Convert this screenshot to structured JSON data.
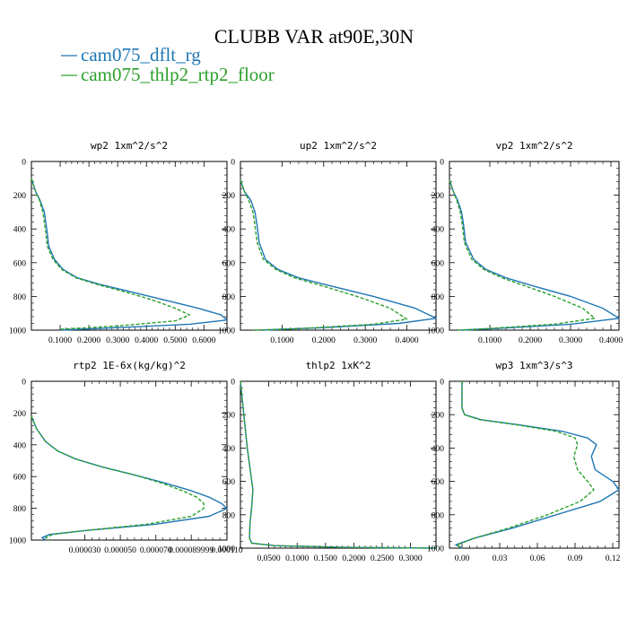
{
  "title": "CLUBB VAR at90E,30N",
  "legend": [
    {
      "label": "cam075_dflt_rg",
      "color": "#1f77b4"
    },
    {
      "label": "cam075_thlp2_rtp2_floor",
      "color": "#2ca02c"
    }
  ],
  "chart_data": [
    {
      "type": "line",
      "title": "wp2  1xm^2/s^2",
      "xlim": [
        0.0,
        0.68
      ],
      "ylim": [
        1000,
        0
      ],
      "y_inverted": true,
      "xticks": [
        {
          "v": 0.1,
          "label": "0.1000"
        },
        {
          "v": 0.2,
          "label": "0.2000"
        },
        {
          "v": 0.3,
          "label": "0.3000"
        },
        {
          "v": 0.4,
          "label": "0.4000"
        },
        {
          "v": 0.5,
          "label": "0.5000"
        },
        {
          "v": 0.6,
          "label": "0.6000"
        }
      ],
      "yticks": [
        0,
        200,
        400,
        600,
        800,
        1000
      ],
      "series": [
        {
          "name": "cam075_dflt_rg",
          "color": "#1f77b4",
          "dash": "",
          "x": [
            0.0,
            0.015,
            0.03,
            0.045,
            0.05,
            0.055,
            0.06,
            0.08,
            0.11,
            0.16,
            0.24,
            0.34,
            0.46,
            0.58,
            0.66,
            0.68,
            0.55,
            0.3,
            0.1
          ],
          "y": [
            100,
            180,
            230,
            300,
            360,
            420,
            500,
            580,
            640,
            690,
            730,
            770,
            820,
            870,
            910,
            940,
            965,
            985,
            1000
          ]
        },
        {
          "name": "cam075_thlp2_rtp2_floor",
          "color": "#2ca02c",
          "dash": "4,2",
          "x": [
            0.0,
            0.015,
            0.028,
            0.04,
            0.045,
            0.05,
            0.055,
            0.075,
            0.105,
            0.155,
            0.23,
            0.32,
            0.42,
            0.5,
            0.55,
            0.5,
            0.3,
            0.1
          ],
          "y": [
            100,
            180,
            230,
            300,
            360,
            420,
            500,
            580,
            640,
            690,
            730,
            770,
            820,
            870,
            910,
            945,
            975,
            995
          ]
        }
      ]
    },
    {
      "type": "line",
      "title": "up2  1xm^2/s^2",
      "xlim": [
        0.0,
        0.47
      ],
      "ylim": [
        1000,
        0
      ],
      "y_inverted": true,
      "xticks": [
        {
          "v": 0.1,
          "label": "0.1000"
        },
        {
          "v": 0.2,
          "label": "0.2000"
        },
        {
          "v": 0.3,
          "label": "0.3000"
        },
        {
          "v": 0.4,
          "label": "0.4000"
        }
      ],
      "yticks": [
        0,
        200,
        400,
        600,
        800,
        1000
      ],
      "series": [
        {
          "name": "cam075_dflt_rg",
          "color": "#1f77b4",
          "dash": "",
          "x": [
            0.0,
            0.01,
            0.025,
            0.035,
            0.04,
            0.045,
            0.06,
            0.09,
            0.14,
            0.22,
            0.32,
            0.42,
            0.47,
            0.38,
            0.2,
            0.05
          ],
          "y": [
            110,
            180,
            230,
            300,
            380,
            480,
            580,
            640,
            690,
            740,
            800,
            870,
            930,
            960,
            985,
            1000
          ]
        },
        {
          "name": "cam075_thlp2_rtp2_floor",
          "color": "#2ca02c",
          "dash": "4,2",
          "x": [
            0.0,
            0.01,
            0.02,
            0.03,
            0.035,
            0.04,
            0.055,
            0.085,
            0.13,
            0.2,
            0.28,
            0.36,
            0.4,
            0.32,
            0.15,
            0.03
          ],
          "y": [
            110,
            180,
            230,
            300,
            380,
            480,
            580,
            640,
            690,
            740,
            800,
            870,
            935,
            965,
            990,
            1000
          ]
        }
      ]
    },
    {
      "type": "line",
      "title": "vp2  1xm^2/s^2",
      "xlim": [
        0.0,
        0.42
      ],
      "ylim": [
        1000,
        0
      ],
      "y_inverted": true,
      "xticks": [
        {
          "v": 0.1,
          "label": "0.1000"
        },
        {
          "v": 0.2,
          "label": "0.2000"
        },
        {
          "v": 0.3,
          "label": "0.3000"
        },
        {
          "v": 0.4,
          "label": "0.4000"
        }
      ],
      "yticks": [
        0,
        200,
        400,
        600,
        800,
        1000
      ],
      "series": [
        {
          "name": "cam075_dflt_rg",
          "color": "#1f77b4",
          "dash": "",
          "x": [
            0.0,
            0.01,
            0.02,
            0.03,
            0.035,
            0.04,
            0.06,
            0.09,
            0.14,
            0.21,
            0.3,
            0.38,
            0.42,
            0.3,
            0.12,
            0.03
          ],
          "y": [
            110,
            180,
            230,
            300,
            380,
            480,
            580,
            640,
            690,
            740,
            800,
            870,
            930,
            965,
            990,
            1000
          ]
        },
        {
          "name": "cam075_thlp2_rtp2_floor",
          "color": "#2ca02c",
          "dash": "4,2",
          "x": [
            0.0,
            0.01,
            0.018,
            0.027,
            0.032,
            0.037,
            0.055,
            0.085,
            0.13,
            0.19,
            0.26,
            0.33,
            0.36,
            0.26,
            0.1,
            0.02
          ],
          "y": [
            110,
            180,
            230,
            300,
            380,
            480,
            580,
            640,
            690,
            740,
            800,
            870,
            930,
            965,
            990,
            1000
          ]
        }
      ]
    },
    {
      "type": "line",
      "title": "rtp2  1E-6x(kg/kg)^2",
      "xlim": [
        0.0,
        0.00011
      ],
      "ylim": [
        1000,
        0
      ],
      "y_inverted": true,
      "xticks": [
        {
          "v": 3e-05,
          "label": "0.000030"
        },
        {
          "v": 5e-05,
          "label": "0.000050"
        },
        {
          "v": 7e-05,
          "label": "0.000070"
        },
        {
          "v": 8.99e-05,
          "label": "0.000089999"
        },
        {
          "v": 0.00011,
          "label": "0.000110"
        }
      ],
      "yticks": [
        0,
        200,
        400,
        600,
        800,
        1000
      ],
      "series": [
        {
          "name": "cam075_dflt_rg",
          "color": "#1f77b4",
          "dash": "",
          "x": [
            0.0,
            3e-06,
            8e-06,
            1.5e-05,
            2.5e-05,
            4e-05,
            5.8e-05,
            7.5e-05,
            9e-05,
            0.0001,
            0.000107,
            0.00011,
            0.0001,
            7e-05,
            3e-05,
            1e-05,
            6e-06,
            8e-06
          ],
          "y": [
            220,
            300,
            380,
            440,
            490,
            540,
            590,
            640,
            690,
            730,
            770,
            800,
            850,
            900,
            940,
            965,
            985,
            1000
          ]
        },
        {
          "name": "cam075_thlp2_rtp2_floor",
          "color": "#2ca02c",
          "dash": "4,2",
          "x": [
            0.0,
            3e-06,
            8e-06,
            1.5e-05,
            2.5e-05,
            4e-05,
            5.8e-05,
            7.3e-05,
            8.5e-05,
            9.3e-05,
            9.7e-05,
            9.7e-05,
            9e-05,
            6.5e-05,
            3e-05,
            1.2e-05,
            8e-06,
            1e-05
          ],
          "y": [
            220,
            300,
            380,
            440,
            490,
            540,
            590,
            640,
            690,
            730,
            770,
            800,
            850,
            900,
            940,
            965,
            985,
            1000
          ]
        }
      ]
    },
    {
      "type": "line",
      "title": "thlp2  1xK^2",
      "xlim": [
        0.0,
        0.345
      ],
      "ylim": [
        1000,
        0
      ],
      "y_inverted": true,
      "xticks": [
        {
          "v": 0.05,
          "label": "0.0500"
        },
        {
          "v": 0.1,
          "label": "0.1000"
        },
        {
          "v": 0.15,
          "label": "0.1500"
        },
        {
          "v": 0.2,
          "label": "0.2000"
        },
        {
          "v": 0.25,
          "label": "0.2500"
        },
        {
          "v": 0.3,
          "label": "0.3000"
        }
      ],
      "yticks": [
        0,
        200,
        400,
        600,
        800,
        1000
      ],
      "series": [
        {
          "name": "cam075_dflt_rg",
          "color": "#1f77b4",
          "dash": "",
          "x": [
            0.0,
            0.006,
            0.012,
            0.018,
            0.022,
            0.02,
            0.017,
            0.016,
            0.02,
            0.06,
            0.18,
            0.345
          ],
          "y": [
            0,
            200,
            400,
            550,
            650,
            750,
            850,
            940,
            970,
            985,
            995,
            1000
          ]
        },
        {
          "name": "cam075_thlp2_rtp2_floor",
          "color": "#2ca02c",
          "dash": "4,2",
          "x": [
            0.0,
            0.006,
            0.012,
            0.018,
            0.022,
            0.02,
            0.017,
            0.016,
            0.02,
            0.06,
            0.18,
            0.345
          ],
          "y": [
            0,
            200,
            400,
            550,
            650,
            750,
            850,
            940,
            970,
            985,
            995,
            1000
          ]
        }
      ]
    },
    {
      "type": "line",
      "title": "wp3  1xm^3/s^3",
      "xlim": [
        -0.01,
        0.125
      ],
      "ylim": [
        1000,
        0
      ],
      "y_inverted": true,
      "xticks": [
        {
          "v": 0.0,
          "label": "0.00"
        },
        {
          "v": 0.03,
          "label": "0.03"
        },
        {
          "v": 0.06,
          "label": "0.06"
        },
        {
          "v": 0.09,
          "label": "0.09"
        },
        {
          "v": 0.12,
          "label": "0.12"
        }
      ],
      "yticks": [
        0,
        200,
        400,
        600,
        800,
        1000
      ],
      "series": [
        {
          "name": "cam075_dflt_rg",
          "color": "#1f77b4",
          "dash": "",
          "x": [
            0.0,
            0.0,
            0.002,
            0.015,
            0.045,
            0.08,
            0.1,
            0.107,
            0.103,
            0.106,
            0.12,
            0.125,
            0.11,
            0.075,
            0.04,
            0.01,
            -0.005,
            0.0
          ],
          "y": [
            0,
            160,
            200,
            230,
            260,
            300,
            340,
            380,
            450,
            530,
            600,
            650,
            720,
            800,
            880,
            940,
            980,
            1000
          ]
        },
        {
          "name": "cam075_thlp2_rtp2_floor",
          "color": "#2ca02c",
          "dash": "4,2",
          "x": [
            0.0,
            0.0,
            0.002,
            0.014,
            0.043,
            0.075,
            0.09,
            0.092,
            0.089,
            0.092,
            0.1,
            0.105,
            0.094,
            0.068,
            0.037,
            0.01,
            -0.004,
            0.0
          ],
          "y": [
            0,
            160,
            200,
            230,
            260,
            300,
            340,
            380,
            450,
            530,
            600,
            650,
            720,
            800,
            880,
            940,
            980,
            1000
          ]
        }
      ]
    }
  ]
}
